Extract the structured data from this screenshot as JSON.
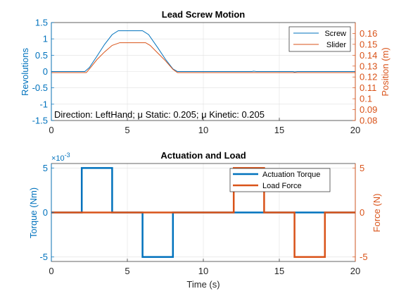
{
  "colors": {
    "left_axis": "#0072BD",
    "right_axis": "#D95319",
    "axis_black": "#262626",
    "grid": "#dfdfdf"
  },
  "chart_data": [
    {
      "type": "line",
      "title": "Lead Screw Motion",
      "xlabel": "",
      "ylabel_left": "Revolutions",
      "ylabel_right": "Position (m)",
      "xlim": [
        0,
        20
      ],
      "ylim_left": [
        -1.5,
        1.5
      ],
      "ylim_right": [
        0.08,
        0.17
      ],
      "xticks": [
        "0",
        "5",
        "10",
        "15",
        "20"
      ],
      "yticks_left": [
        "-1.5",
        "-1",
        "-0.5",
        "0",
        "0.5",
        "1",
        "1.5"
      ],
      "yticks_right": [
        "0.08",
        "0.09",
        "0.1",
        "0.11",
        "0.12",
        "0.13",
        "0.14",
        "0.15",
        "0.16"
      ],
      "grid": true,
      "legend": {
        "placement": "top-right",
        "entries": [
          "Screw",
          "Slider"
        ]
      },
      "annotation": "Direction: LeftHand; μ Static: 0.205; μ Kinetic: 0.205",
      "series": [
        {
          "name": "Screw",
          "axis": "left",
          "x": [
            0,
            2.2,
            2.5,
            3.0,
            3.5,
            4.0,
            4.4,
            6.0,
            6.4,
            7.0,
            7.5,
            8.0,
            8.3,
            13.2,
            13.3,
            13.5,
            15.9,
            16.0,
            16.2,
            20
          ],
          "y": [
            0,
            0,
            0.12,
            0.47,
            0.83,
            1.13,
            1.25,
            1.25,
            1.13,
            0.73,
            0.38,
            0.08,
            0,
            0,
            0.01,
            0,
            0,
            -0.01,
            0,
            0
          ]
        },
        {
          "name": "Slider",
          "axis": "right",
          "x": [
            0,
            2.3,
            2.6,
            3.0,
            3.5,
            4.0,
            4.5,
            6.2,
            6.5,
            7.0,
            7.5,
            8.0,
            8.3,
            20
          ],
          "y": [
            0.124,
            0.124,
            0.129,
            0.136,
            0.143,
            0.149,
            0.1515,
            0.1515,
            0.149,
            0.142,
            0.135,
            0.127,
            0.124,
            0.124
          ]
        }
      ]
    },
    {
      "type": "line",
      "title": "Actuation and Load",
      "xlabel": "Time (s)",
      "ylabel_left": "Torque (Nm)",
      "ylabel_right": "Force (N)",
      "exponent_label": "×10^-3",
      "xlim": [
        0,
        20
      ],
      "ylim_left": [
        -0.0055,
        0.0055
      ],
      "ylim_right": [
        -5.5,
        5.5
      ],
      "xticks": [
        "0",
        "5",
        "10",
        "15",
        "20"
      ],
      "yticks_left": [
        "-5",
        "0",
        "5"
      ],
      "yticks_right": [
        "-5",
        "0",
        "5"
      ],
      "grid": true,
      "legend": {
        "placement": "top-right",
        "entries": [
          "Actuation Torque",
          "Load Force"
        ]
      },
      "series": [
        {
          "name": "Actuation Torque",
          "axis": "left",
          "x": [
            0,
            2,
            2,
            4,
            4,
            6,
            6,
            8,
            8,
            20
          ],
          "y": [
            0,
            0,
            0.005,
            0.005,
            0,
            0,
            -0.005,
            -0.005,
            0,
            0
          ]
        },
        {
          "name": "Load Force",
          "axis": "right",
          "x": [
            0,
            12,
            12,
            14,
            14,
            16,
            16,
            18,
            18,
            20
          ],
          "y": [
            0,
            0,
            5,
            5,
            0,
            0,
            -5,
            -5,
            0,
            0
          ]
        }
      ]
    }
  ]
}
